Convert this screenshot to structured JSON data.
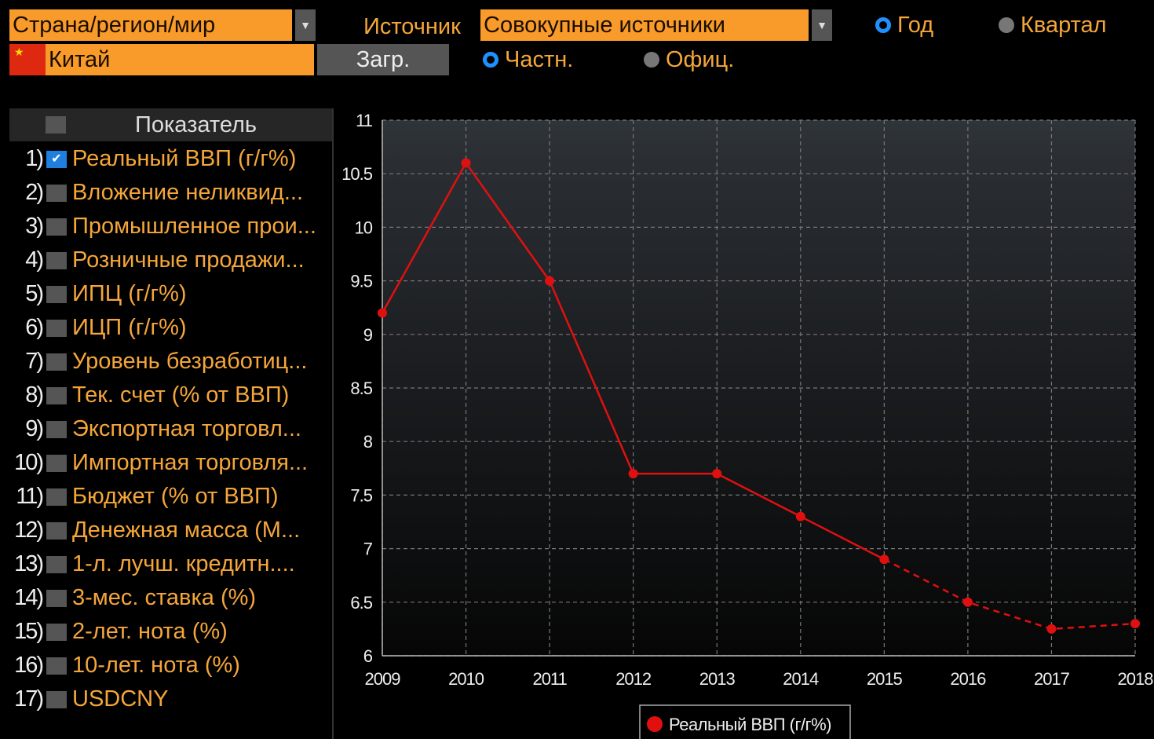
{
  "controls": {
    "region_label": "Страна/регион/мир",
    "source_label": "Источник",
    "source_value": "Совокупные источники",
    "country": "Китай",
    "load": "Загр.",
    "period": {
      "options": [
        "Год",
        "Квартал"
      ],
      "selected": 0
    },
    "kind": {
      "options": [
        "Частн.",
        "Офиц."
      ],
      "selected": 0
    }
  },
  "indicators": {
    "header": "Показатель",
    "items": [
      {
        "num": "1)",
        "label": "Реальный ВВП (г/г%)",
        "checked": true
      },
      {
        "num": "2)",
        "label": "Вложение неликвид...",
        "checked": false
      },
      {
        "num": "3)",
        "label": "Промышленное прои...",
        "checked": false
      },
      {
        "num": "4)",
        "label": "Розничные продажи...",
        "checked": false
      },
      {
        "num": "5)",
        "label": "ИПЦ (г/г%)",
        "checked": false
      },
      {
        "num": "6)",
        "label": "ИЦП (г/г%)",
        "checked": false
      },
      {
        "num": "7)",
        "label": "Уровень безработиц...",
        "checked": false
      },
      {
        "num": "8)",
        "label": "Тек. счет (% от ВВП)",
        "checked": false
      },
      {
        "num": "9)",
        "label": "Экспортная торговл...",
        "checked": false
      },
      {
        "num": "10)",
        "label": "Импортная торговля...",
        "checked": false
      },
      {
        "num": "11)",
        "label": "Бюджет (% от ВВП)",
        "checked": false
      },
      {
        "num": "12)",
        "label": "Денежная масса (М...",
        "checked": false
      },
      {
        "num": "13)",
        "label": "1-л. лучш. кредитн....",
        "checked": false
      },
      {
        "num": "14)",
        "label": "3-мес. ставка (%)",
        "checked": false
      },
      {
        "num": "15)",
        "label": "2-лет. нота (%)",
        "checked": false
      },
      {
        "num": "16)",
        "label": "10-лет. нота (%)",
        "checked": false
      },
      {
        "num": "17)",
        "label": "USDCNY",
        "checked": false
      }
    ]
  },
  "chart_data": {
    "type": "line",
    "x": [
      2009,
      2010,
      2011,
      2012,
      2013,
      2014,
      2015,
      2016,
      2017,
      2018
    ],
    "series": [
      {
        "name": "Реальный ВВП (г/г%)",
        "color": "#e01010",
        "values": [
          9.2,
          10.6,
          9.5,
          7.7,
          7.7,
          7.3,
          6.9,
          6.5,
          6.25,
          6.3
        ]
      }
    ],
    "forecast_start": 2015,
    "xlim": [
      2009,
      2018
    ],
    "xticks": [
      2009,
      2010,
      2011,
      2012,
      2013,
      2014,
      2015,
      2016,
      2017,
      2018
    ],
    "ylim": [
      6,
      11
    ],
    "yticks": [
      6,
      6.5,
      7,
      7.5,
      8,
      8.5,
      9,
      9.5,
      10,
      10.5,
      11
    ],
    "grid": true
  }
}
